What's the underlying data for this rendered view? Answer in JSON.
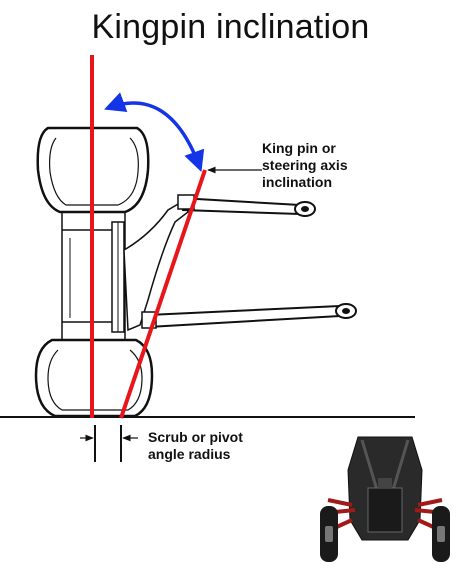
{
  "title": "Kingpin inclination",
  "labels": {
    "kingpin_axis": "King pin or\nsteering axis\ninclination",
    "scrub_radius": "Scrub or pivot\nangle radius"
  },
  "colors": {
    "vertical_line": "#e8151b",
    "steering_axis": "#e8151b",
    "angle_arrow": "#1434e8",
    "outline": "#111111",
    "vehicle_body": "#222222",
    "vehicle_arms": "#a11a1a"
  }
}
